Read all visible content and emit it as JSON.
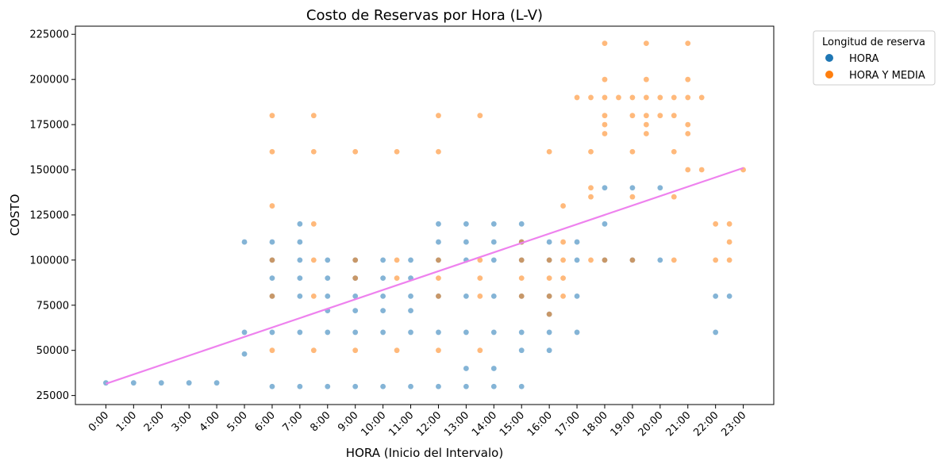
{
  "chart_data": {
    "type": "scatter",
    "title": "Costo de Reservas por Hora (L-V)",
    "xlabel": "HORA (Inicio del Intervalo)",
    "ylabel": "COSTO",
    "xlim": [
      -1.1,
      24.1
    ],
    "ylim": [
      20000,
      229500
    ],
    "x_ticks": [
      0,
      1,
      2,
      3,
      4,
      5,
      6,
      7,
      8,
      9,
      10,
      11,
      12,
      13,
      14,
      15,
      16,
      17,
      18,
      19,
      20,
      21,
      22,
      23
    ],
    "x_tick_labels": [
      "0:00",
      "1:00",
      "2:00",
      "3:00",
      "4:00",
      "5:00",
      "6:00",
      "7:00",
      "8:00",
      "9:00",
      "10:00",
      "11:00",
      "12:00",
      "13:00",
      "14:00",
      "15:00",
      "16:00",
      "17:00",
      "18:00",
      "19:00",
      "20:00",
      "21:00",
      "22:00",
      "23:00"
    ],
    "y_ticks": [
      25000,
      50000,
      75000,
      100000,
      125000,
      150000,
      175000,
      200000,
      225000
    ],
    "y_tick_labels": [
      "25000",
      "50000",
      "75000",
      "100000",
      "125000",
      "150000",
      "175000",
      "200000",
      "225000"
    ],
    "grid": false,
    "legend": {
      "title": "Longitud de reserva",
      "placement": "outside-top-right",
      "entries": [
        {
          "label": "HORA",
          "color": "#1f77b4"
        },
        {
          "label": "HORA Y MEDIA",
          "color": "#ff7f0e"
        }
      ]
    },
    "series": [
      {
        "name": "HORA",
        "color": "#1f77b4",
        "opacity": 0.55,
        "points": [
          [
            0,
            32000
          ],
          [
            1,
            32000
          ],
          [
            2,
            32000
          ],
          [
            3,
            32000
          ],
          [
            4,
            32000
          ],
          [
            5,
            110000
          ],
          [
            5,
            60000
          ],
          [
            5,
            48000
          ],
          [
            6,
            110000
          ],
          [
            6,
            100000
          ],
          [
            6,
            90000
          ],
          [
            6,
            80000
          ],
          [
            6,
            60000
          ],
          [
            6,
            30000
          ],
          [
            7,
            120000
          ],
          [
            7,
            110000
          ],
          [
            7,
            100000
          ],
          [
            7,
            90000
          ],
          [
            7,
            80000
          ],
          [
            7,
            60000
          ],
          [
            7,
            30000
          ],
          [
            8,
            100000
          ],
          [
            8,
            90000
          ],
          [
            8,
            80000
          ],
          [
            8,
            72000
          ],
          [
            8,
            60000
          ],
          [
            8,
            30000
          ],
          [
            9,
            100000
          ],
          [
            9,
            90000
          ],
          [
            9,
            80000
          ],
          [
            9,
            72000
          ],
          [
            9,
            60000
          ],
          [
            9,
            30000
          ],
          [
            10,
            100000
          ],
          [
            10,
            90000
          ],
          [
            10,
            80000
          ],
          [
            10,
            72000
          ],
          [
            10,
            60000
          ],
          [
            10,
            30000
          ],
          [
            11,
            100000
          ],
          [
            11,
            90000
          ],
          [
            11,
            80000
          ],
          [
            11,
            72000
          ],
          [
            11,
            60000
          ],
          [
            11,
            30000
          ],
          [
            12,
            120000
          ],
          [
            12,
            110000
          ],
          [
            12,
            100000
          ],
          [
            12,
            80000
          ],
          [
            12,
            60000
          ],
          [
            12,
            30000
          ],
          [
            13,
            120000
          ],
          [
            13,
            110000
          ],
          [
            13,
            100000
          ],
          [
            13,
            80000
          ],
          [
            13,
            60000
          ],
          [
            13,
            40000
          ],
          [
            13,
            30000
          ],
          [
            14,
            120000
          ],
          [
            14,
            110000
          ],
          [
            14,
            100000
          ],
          [
            14,
            80000
          ],
          [
            14,
            60000
          ],
          [
            14,
            40000
          ],
          [
            14,
            30000
          ],
          [
            15,
            120000
          ],
          [
            15,
            110000
          ],
          [
            15,
            100000
          ],
          [
            15,
            80000
          ],
          [
            15,
            60000
          ],
          [
            15,
            50000
          ],
          [
            15,
            30000
          ],
          [
            16,
            110000
          ],
          [
            16,
            100000
          ],
          [
            16,
            80000
          ],
          [
            16,
            70000
          ],
          [
            16,
            60000
          ],
          [
            16,
            50000
          ],
          [
            17,
            110000
          ],
          [
            17,
            100000
          ],
          [
            17,
            80000
          ],
          [
            17,
            60000
          ],
          [
            18,
            140000
          ],
          [
            18,
            120000
          ],
          [
            18,
            100000
          ],
          [
            19,
            140000
          ],
          [
            19,
            100000
          ],
          [
            20,
            140000
          ],
          [
            20,
            100000
          ],
          [
            22,
            80000
          ],
          [
            22,
            60000
          ],
          [
            22.5,
            80000
          ]
        ]
      },
      {
        "name": "HORA Y MEDIA",
        "color": "#ff7f0e",
        "opacity": 0.55,
        "points": [
          [
            6,
            180000
          ],
          [
            6,
            160000
          ],
          [
            6,
            130000
          ],
          [
            6,
            100000
          ],
          [
            6,
            80000
          ],
          [
            6,
            50000
          ],
          [
            7.5,
            180000
          ],
          [
            7.5,
            160000
          ],
          [
            7.5,
            120000
          ],
          [
            7.5,
            100000
          ],
          [
            7.5,
            80000
          ],
          [
            7.5,
            50000
          ],
          [
            9,
            160000
          ],
          [
            9,
            100000
          ],
          [
            9,
            90000
          ],
          [
            9,
            50000
          ],
          [
            10.5,
            160000
          ],
          [
            10.5,
            100000
          ],
          [
            10.5,
            90000
          ],
          [
            10.5,
            50000
          ],
          [
            12,
            180000
          ],
          [
            12,
            160000
          ],
          [
            12,
            100000
          ],
          [
            12,
            90000
          ],
          [
            12,
            80000
          ],
          [
            12,
            50000
          ],
          [
            13.5,
            180000
          ],
          [
            13.5,
            100000
          ],
          [
            13.5,
            90000
          ],
          [
            13.5,
            80000
          ],
          [
            13.5,
            50000
          ],
          [
            15,
            110000
          ],
          [
            15,
            100000
          ],
          [
            15,
            90000
          ],
          [
            15,
            80000
          ],
          [
            16,
            160000
          ],
          [
            16,
            100000
          ],
          [
            16,
            90000
          ],
          [
            16,
            80000
          ],
          [
            16,
            70000
          ],
          [
            16.5,
            130000
          ],
          [
            16.5,
            110000
          ],
          [
            16.5,
            100000
          ],
          [
            16.5,
            90000
          ],
          [
            16.5,
            80000
          ],
          [
            17,
            190000
          ],
          [
            17.5,
            190000
          ],
          [
            17.5,
            160000
          ],
          [
            17.5,
            140000
          ],
          [
            17.5,
            135000
          ],
          [
            17.5,
            100000
          ],
          [
            18,
            220000
          ],
          [
            18,
            200000
          ],
          [
            18,
            190000
          ],
          [
            18,
            180000
          ],
          [
            18,
            175000
          ],
          [
            18,
            170000
          ],
          [
            18,
            100000
          ],
          [
            18.5,
            190000
          ],
          [
            19,
            190000
          ],
          [
            19,
            180000
          ],
          [
            19,
            160000
          ],
          [
            19,
            135000
          ],
          [
            19,
            100000
          ],
          [
            19.5,
            220000
          ],
          [
            19.5,
            200000
          ],
          [
            19.5,
            190000
          ],
          [
            19.5,
            180000
          ],
          [
            19.5,
            175000
          ],
          [
            19.5,
            170000
          ],
          [
            20,
            190000
          ],
          [
            20,
            180000
          ],
          [
            20.5,
            190000
          ],
          [
            20.5,
            180000
          ],
          [
            20.5,
            160000
          ],
          [
            20.5,
            135000
          ],
          [
            20.5,
            100000
          ],
          [
            21,
            220000
          ],
          [
            21,
            200000
          ],
          [
            21,
            190000
          ],
          [
            21,
            175000
          ],
          [
            21,
            170000
          ],
          [
            21,
            150000
          ],
          [
            21.5,
            190000
          ],
          [
            21.5,
            150000
          ],
          [
            22,
            120000
          ],
          [
            22,
            100000
          ],
          [
            22.5,
            120000
          ],
          [
            22.5,
            110000
          ],
          [
            22.5,
            100000
          ],
          [
            23,
            150000
          ]
        ]
      }
    ],
    "trendline": {
      "color": "#ee82ee",
      "x": [
        0,
        23
      ],
      "y": [
        31500,
        151000
      ]
    }
  }
}
